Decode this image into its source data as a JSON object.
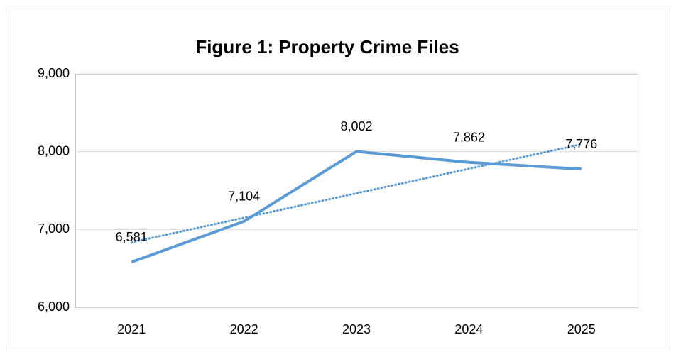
{
  "chart_data": {
    "type": "line",
    "title": "Figure 1: Property Crime Files",
    "categories": [
      "2021",
      "2022",
      "2023",
      "2024",
      "2025"
    ],
    "series": [
      {
        "name": "Property Crime Files",
        "color": "#5b9bd5",
        "values": [
          6581,
          7104,
          8002,
          7862,
          7776
        ],
        "value_labels": [
          "6,581",
          "7,104",
          "8,002",
          "7,862",
          "7,776"
        ]
      }
    ],
    "trendline": "linear",
    "ylim": [
      6000,
      9000
    ],
    "yticks": [
      {
        "value": 6000,
        "label": "6,000"
      },
      {
        "value": 7000,
        "label": "7,000"
      },
      {
        "value": 8000,
        "label": "8,000"
      },
      {
        "value": 9000,
        "label": "9,000"
      }
    ],
    "grid": true,
    "legend": false
  }
}
